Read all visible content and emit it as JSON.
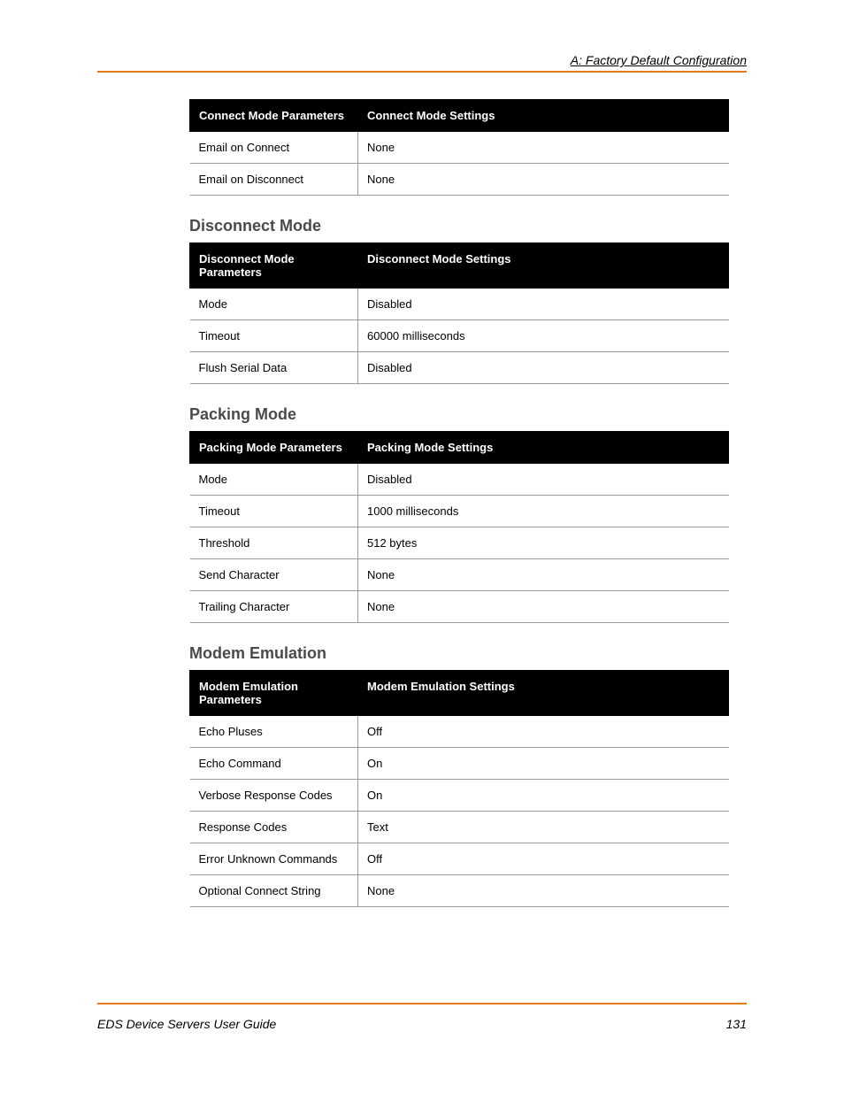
{
  "header": {
    "title": "A: Factory Default Configuration"
  },
  "footer": {
    "guide": "EDS Device Servers User Guide",
    "page": "131"
  },
  "colors": {
    "accent": "#e87c1a",
    "table_header_bg": "#000000",
    "table_header_fg": "#ffffff",
    "border": "#9a9a9a",
    "section_title": "#4a4a4a"
  },
  "sections": [
    {
      "title": null,
      "columns": [
        "Connect Mode Parameters",
        "Connect Mode Settings"
      ],
      "rows": [
        {
          "param": "Email on Connect",
          "value": "None"
        },
        {
          "param": "Email on Disconnect",
          "value": "None"
        }
      ]
    },
    {
      "title": "Disconnect Mode",
      "columns": [
        "Disconnect Mode Parameters",
        "Disconnect Mode Settings"
      ],
      "rows": [
        {
          "param": "Mode",
          "value": "Disabled"
        },
        {
          "param": "Timeout",
          "value": "60000 milliseconds"
        },
        {
          "param": "Flush Serial Data",
          "value": "Disabled"
        }
      ]
    },
    {
      "title": "Packing Mode",
      "columns": [
        "Packing Mode Parameters",
        "Packing Mode Settings"
      ],
      "rows": [
        {
          "param": "Mode",
          "value": "Disabled"
        },
        {
          "param": "Timeout",
          "value": "1000 milliseconds"
        },
        {
          "param": "Threshold",
          "value": "512 bytes"
        },
        {
          "param": "Send Character",
          "value": "None"
        },
        {
          "param": "Trailing Character",
          "value": "None"
        }
      ]
    },
    {
      "title": "Modem Emulation",
      "columns": [
        "Modem Emulation Parameters",
        "Modem Emulation Settings"
      ],
      "rows": [
        {
          "param": "Echo Pluses",
          "value": "Off"
        },
        {
          "param": "Echo Command",
          "value": "On"
        },
        {
          "param": "Verbose Response Codes",
          "value": "On"
        },
        {
          "param": "Response Codes",
          "value": "Text"
        },
        {
          "param": "Error Unknown Commands",
          "value": "Off"
        },
        {
          "param": "Optional Connect String",
          "value": "None"
        }
      ]
    }
  ]
}
